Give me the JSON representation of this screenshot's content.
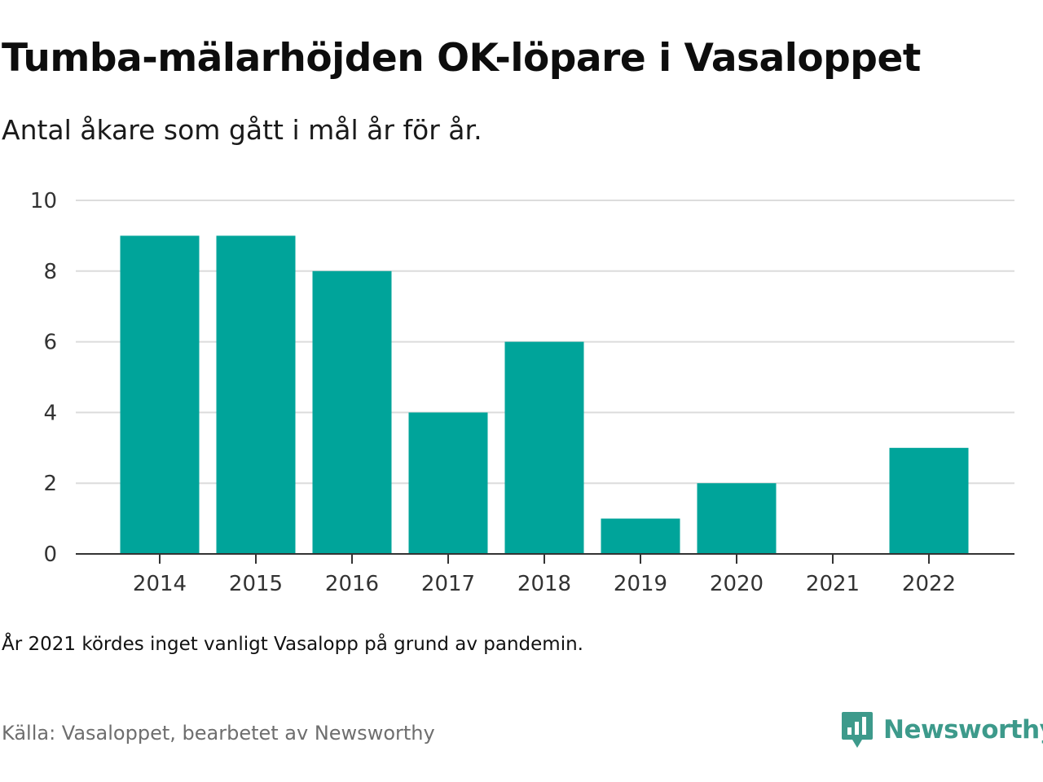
{
  "header": {
    "title": "Tumba-mälarhöjden OK-löpare i Vasaloppet",
    "subtitle": "Antal åkare som gått i mål år för år."
  },
  "chart_data": {
    "type": "bar",
    "categories": [
      "2014",
      "2015",
      "2016",
      "2017",
      "2018",
      "2019",
      "2020",
      "2021",
      "2022"
    ],
    "values": [
      9,
      9,
      8,
      4,
      6,
      1,
      2,
      0,
      3
    ],
    "ylim": [
      0,
      10
    ],
    "yticks": [
      0,
      2,
      4,
      6,
      8,
      10
    ],
    "grid": true,
    "bar_color": "#00a49a"
  },
  "footer": {
    "note": "År 2021 kördes inget vanligt Vasalopp på grund av pandemin.",
    "source": "Källa: Vasaloppet, bearbetet av Newsworthy"
  },
  "brand": {
    "name": "Newsworthy",
    "color": "#3d9a8b",
    "icon": "newsworthy-logo-icon"
  }
}
